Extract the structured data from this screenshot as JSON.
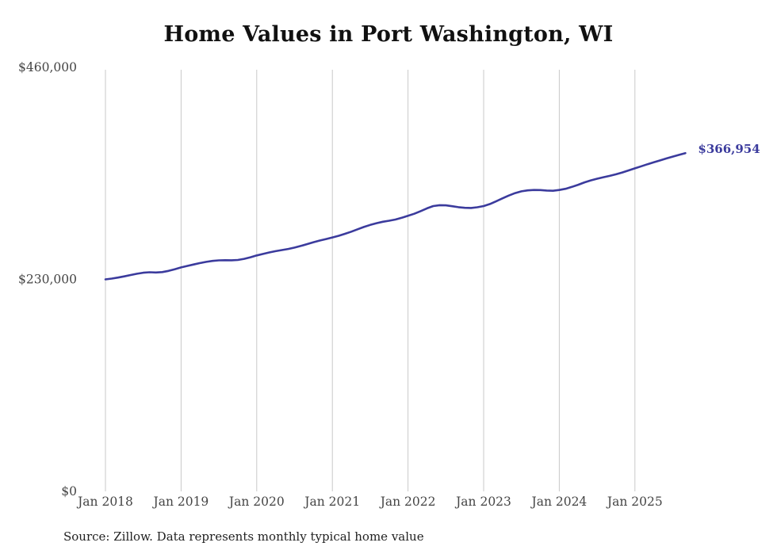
{
  "chart": {
    "title": "Home Values in Port Washington, WI",
    "end_label": "$366,954",
    "source_note": "Source: Zillow. Data represents monthly typical home value",
    "line_color": "#3b3b9d",
    "label_color": "#3b3b9d",
    "grid_color": "#c9c9c9",
    "tick_color": "#454545"
  },
  "chart_data": {
    "type": "line",
    "title": "Home Values in Port Washington, WI",
    "xlabel": "",
    "ylabel": "",
    "ylim": [
      0,
      460000
    ],
    "grid": "vertical-only",
    "legend": "none",
    "y_ticks": [
      {
        "label": "$0",
        "value": 0
      },
      {
        "label": "$230,000",
        "value": 230000
      },
      {
        "label": "$460,000",
        "value": 460000
      }
    ],
    "x_ticks": [
      "Jan 2018",
      "Jan 2019",
      "Jan 2020",
      "Jan 2021",
      "Jan 2022",
      "Jan 2023",
      "Jan 2024",
      "Jan 2025"
    ],
    "frequency": "monthly",
    "start": "Jan 2018",
    "end": "Sep 2025",
    "end_annotation": {
      "text": "$366,954",
      "value": 366954
    },
    "series": [
      {
        "name": "Typical home value",
        "values": [
          230000,
          230900,
          232000,
          233300,
          234700,
          236100,
          237200,
          237700,
          237500,
          237900,
          239200,
          241000,
          243000,
          244600,
          246200,
          247700,
          249000,
          250000,
          250600,
          250800,
          250700,
          251100,
          252300,
          254000,
          256000,
          257600,
          259200,
          260600,
          261800,
          263000,
          264500,
          266300,
          268300,
          270300,
          272100,
          273800,
          275500,
          277300,
          279400,
          281800,
          284300,
          286800,
          289100,
          291000,
          292500,
          293600,
          294900,
          296800,
          299000,
          301200,
          304000,
          307000,
          309500,
          310500,
          310300,
          309400,
          308300,
          307600,
          307500,
          308200,
          309500,
          311800,
          314800,
          318000,
          321000,
          323600,
          325500,
          326600,
          327000,
          326900,
          326400,
          326100,
          327000,
          328300,
          330300,
          332700,
          335200,
          337400,
          339200,
          340800,
          342300,
          344000,
          346000,
          348200,
          350500,
          352700,
          354900,
          357000,
          359100,
          361200,
          363200,
          365100,
          366954
        ]
      }
    ]
  }
}
